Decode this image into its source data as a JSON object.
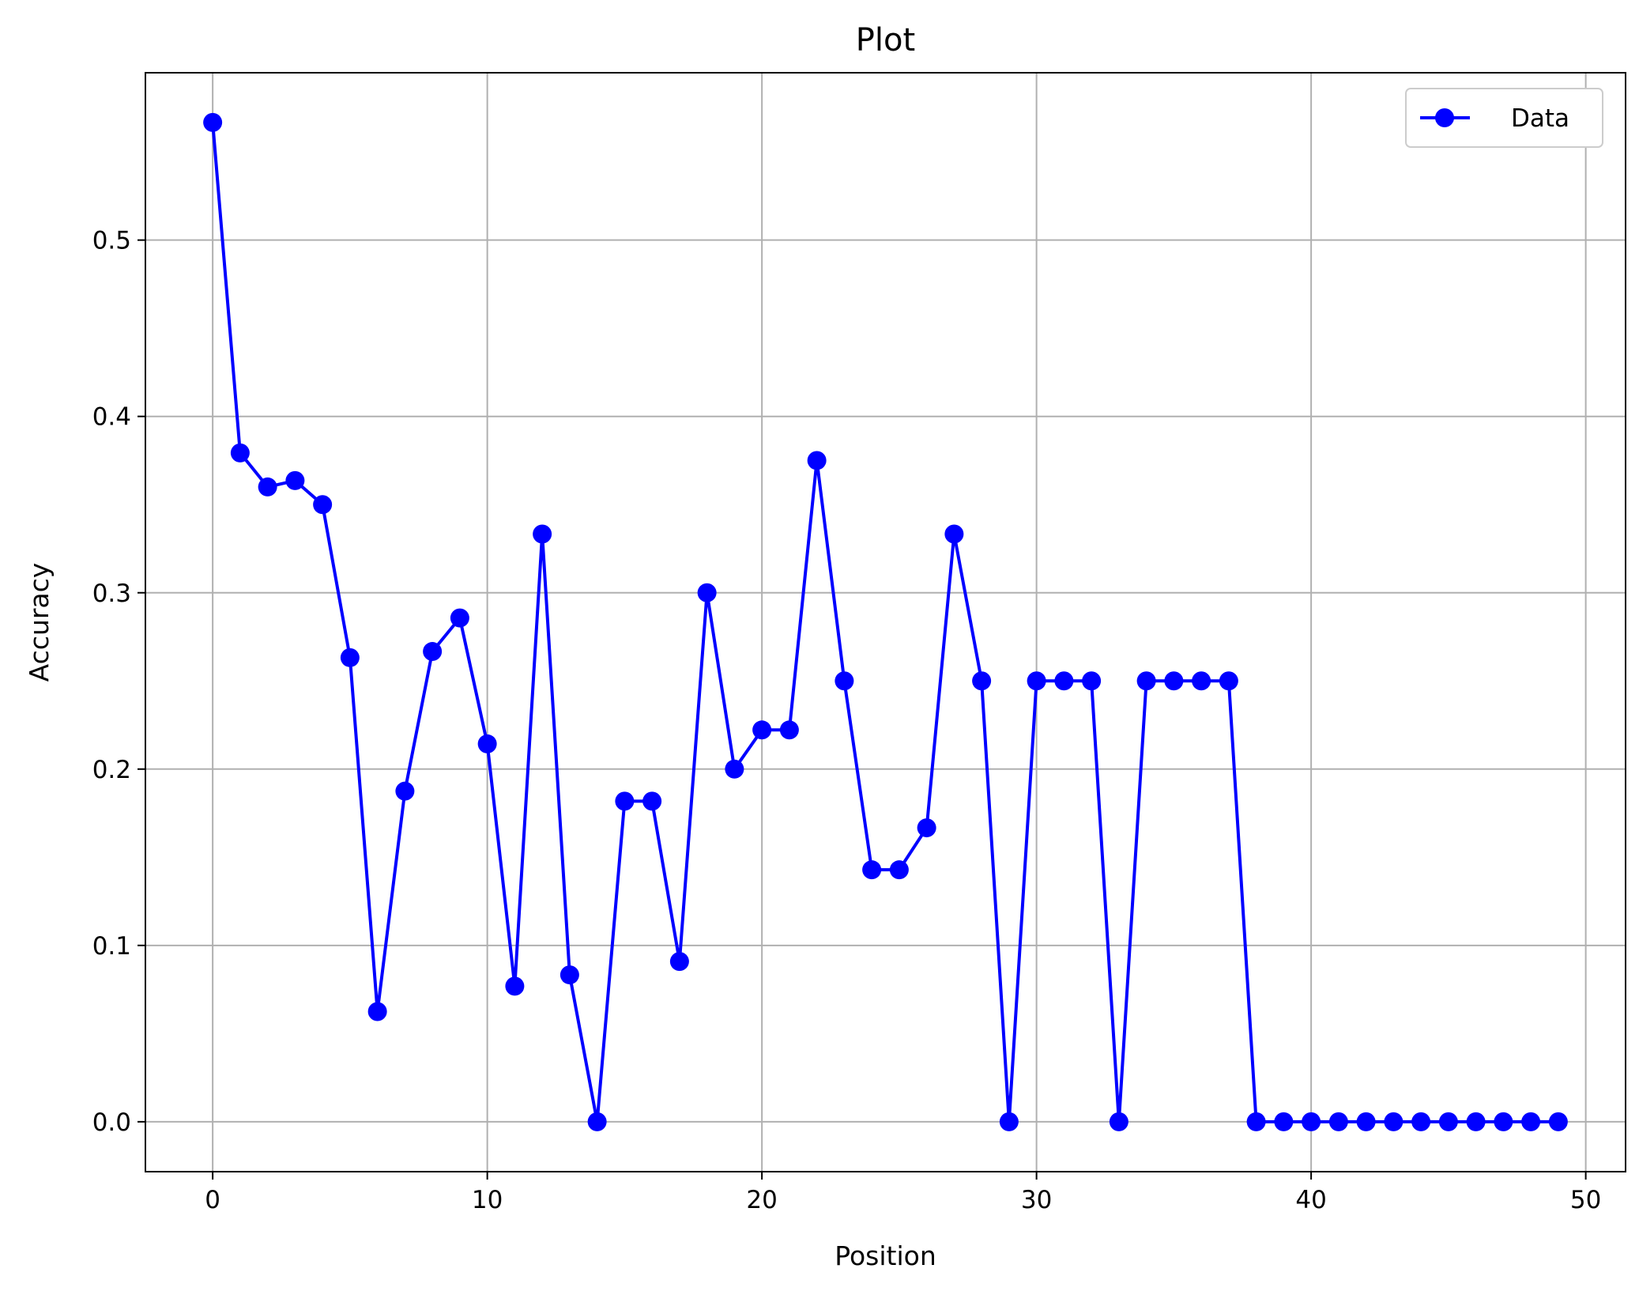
{
  "chart_data": {
    "type": "line",
    "title": "Plot",
    "xlabel": "Position",
    "ylabel": "Accuracy",
    "xlim": [
      -2.45,
      51.45
    ],
    "ylim": [
      -0.0283,
      0.5949
    ],
    "xticks": [
      0,
      10,
      20,
      30,
      40,
      50
    ],
    "yticks": [
      0.0,
      0.1,
      0.2,
      0.3,
      0.4,
      0.5
    ],
    "xtick_labels": [
      "0",
      "10",
      "20",
      "30",
      "40",
      "50"
    ],
    "ytick_labels": [
      "0.0",
      "0.1",
      "0.2",
      "0.3",
      "0.4",
      "0.5"
    ],
    "grid": true,
    "legend_position": "top-right",
    "series": [
      {
        "name": "Data",
        "color": "#0000ff",
        "marker": "circle",
        "x": [
          0,
          1,
          2,
          3,
          4,
          5,
          6,
          7,
          8,
          9,
          10,
          11,
          12,
          13,
          14,
          15,
          16,
          17,
          18,
          19,
          20,
          21,
          22,
          23,
          24,
          25,
          26,
          27,
          28,
          29,
          30,
          31,
          32,
          33,
          34,
          35,
          36,
          37,
          38,
          39,
          40,
          41,
          42,
          43,
          44,
          45,
          46,
          47,
          48,
          49
        ],
        "values": [
          0.5667,
          0.3793,
          0.36,
          0.3636,
          0.35,
          0.2632,
          0.0625,
          0.1875,
          0.2667,
          0.2857,
          0.2143,
          0.0769,
          0.3333,
          0.0833,
          0.0,
          0.1818,
          0.1818,
          0.0909,
          0.3,
          0.2,
          0.2222,
          0.2222,
          0.375,
          0.25,
          0.1429,
          0.1429,
          0.1667,
          0.3333,
          0.25,
          0.0,
          0.25,
          0.25,
          0.25,
          0.0,
          0.25,
          0.25,
          0.25,
          0.25,
          0.0,
          0.0,
          0.0,
          0.0,
          0.0,
          0.0,
          0.0,
          0.0,
          0.0,
          0.0,
          0.0,
          0.0
        ]
      }
    ]
  }
}
